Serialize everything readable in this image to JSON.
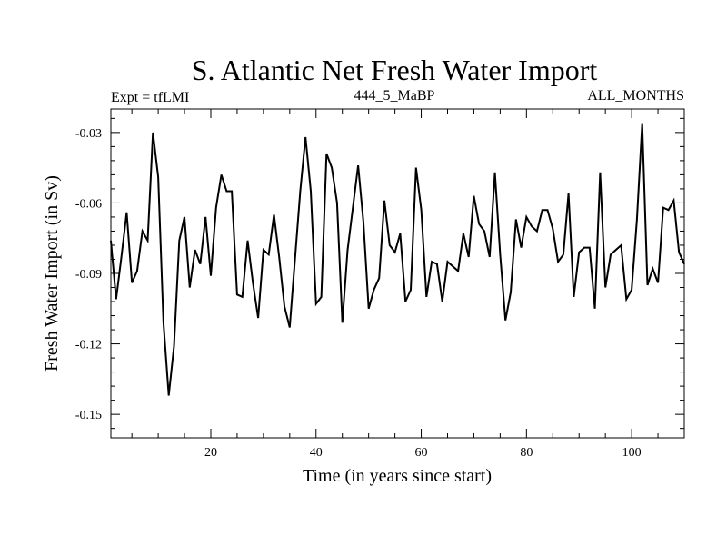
{
  "chart_data": {
    "type": "line",
    "title": "S. Atlantic Net Fresh Water Import",
    "subtitle_left": "Expt = tfLMI",
    "subtitle_center": "444_5_MaBP",
    "subtitle_right": "ALL_MONTHS",
    "xlabel": "Time (in years since start)",
    "ylabel": "Fresh Water Import (in Sv)",
    "xlim": [
      1,
      110
    ],
    "ylim": [
      -0.16,
      -0.02
    ],
    "x_ticks": [
      20,
      40,
      60,
      80,
      100
    ],
    "x_tick_labels": [
      "20",
      "40",
      "60",
      "80",
      "100"
    ],
    "y_ticks": [
      -0.15,
      -0.12,
      -0.09,
      -0.06,
      -0.03
    ],
    "y_tick_labels": [
      "-0.15",
      "-0.12",
      "-0.09",
      "-0.06",
      "-0.03"
    ],
    "grid": false,
    "color": "#000000",
    "series": [
      {
        "name": "Fresh Water Import",
        "x": [
          1,
          2,
          3,
          4,
          5,
          6,
          7,
          8,
          9,
          10,
          11,
          12,
          13,
          14,
          15,
          16,
          17,
          18,
          19,
          20,
          21,
          22,
          23,
          24,
          25,
          26,
          27,
          28,
          29,
          30,
          31,
          32,
          33,
          34,
          35,
          36,
          37,
          38,
          39,
          40,
          41,
          42,
          43,
          44,
          45,
          46,
          47,
          48,
          49,
          50,
          51,
          52,
          53,
          54,
          55,
          56,
          57,
          58,
          59,
          60,
          61,
          62,
          63,
          64,
          65,
          66,
          67,
          68,
          69,
          70,
          71,
          72,
          73,
          74,
          75,
          76,
          77,
          78,
          79,
          80,
          81,
          82,
          83,
          84,
          85,
          86,
          87,
          88,
          89,
          90,
          91,
          92,
          93,
          94,
          95,
          96,
          97,
          98,
          99,
          100,
          101,
          102,
          103,
          104,
          105,
          106,
          107,
          108,
          109,
          110
        ],
        "values": [
          -0.076,
          -0.101,
          -0.083,
          -0.064,
          -0.094,
          -0.089,
          -0.072,
          -0.076,
          -0.03,
          -0.049,
          -0.111,
          -0.142,
          -0.121,
          -0.076,
          -0.066,
          -0.096,
          -0.08,
          -0.086,
          -0.066,
          -0.091,
          -0.062,
          -0.048,
          -0.055,
          -0.055,
          -0.099,
          -0.1,
          -0.076,
          -0.094,
          -0.109,
          -0.08,
          -0.082,
          -0.065,
          -0.083,
          -0.104,
          -0.113,
          -0.084,
          -0.055,
          -0.032,
          -0.055,
          -0.103,
          -0.1,
          -0.039,
          -0.045,
          -0.06,
          -0.111,
          -0.08,
          -0.062,
          -0.044,
          -0.068,
          -0.105,
          -0.097,
          -0.092,
          -0.059,
          -0.078,
          -0.081,
          -0.073,
          -0.102,
          -0.097,
          -0.045,
          -0.063,
          -0.1,
          -0.085,
          -0.086,
          -0.102,
          -0.085,
          -0.087,
          -0.089,
          -0.073,
          -0.083,
          -0.057,
          -0.069,
          -0.072,
          -0.083,
          -0.047,
          -0.082,
          -0.11,
          -0.098,
          -0.067,
          -0.079,
          -0.066,
          -0.07,
          -0.072,
          -0.063,
          -0.063,
          -0.071,
          -0.085,
          -0.082,
          -0.056,
          -0.1,
          -0.081,
          -0.079,
          -0.079,
          -0.105,
          -0.047,
          -0.096,
          -0.082,
          -0.08,
          -0.078,
          -0.101,
          -0.097,
          -0.067,
          -0.026,
          -0.095,
          -0.088,
          -0.094,
          -0.062,
          -0.063,
          -0.059,
          -0.081,
          -0.086
        ]
      }
    ]
  }
}
